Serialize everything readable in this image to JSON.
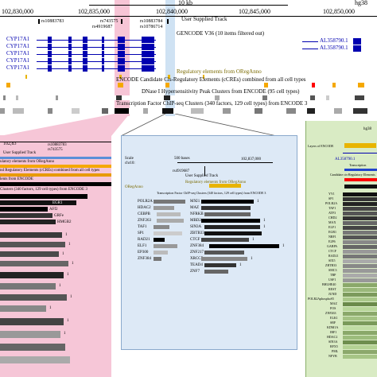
{
  "ruler": {
    "scale_label": "10 kb",
    "assembly": "hg38",
    "positions": [
      "102,830,000",
      "102,835,000",
      "102,840,000",
      "102,845,000",
      "102,850,000"
    ]
  },
  "tracks": {
    "user_supplied": "User Supplied Track",
    "snps": [
      "rs10883783",
      "rs743575",
      "rs4919687",
      "rs10883784",
      "rs10786714"
    ],
    "gencode": "GENCODE V36 (10 items filtered out)",
    "genes": [
      "CYP17A1",
      "CYP17A1",
      "CYP17A1",
      "CYP17A1",
      "CYP17A1"
    ],
    "right_genes": [
      "AL358790.1",
      "AL358790.1"
    ],
    "oreganno": "Regulatory elements from ORegAnno",
    "ccre": "ENCODE Candidate Cis-Regulatory Elements (cCREs) combined from all cell types",
    "dnase": "DNase I Hypersensitivity Peak Clusters from ENCODE (95 cell types)",
    "tfbs": "Transcription Factor ChIP-seq Clusters (340 factors, 129 cell types) from ENCODE 3"
  },
  "left_panel": {
    "ruler_pos": "102,83",
    "labels": [
      "User Supplied Track",
      "ulatory elements from ORegAnno",
      "nd Regulatory Elements (cCREs) combined from all cell types",
      "lents from ENCODE",
      "Clusters (340 factors, 129 cell types) from ENCODE 3",
      "EGR1",
      "AFf2",
      "GRFe",
      "HMGB2"
    ],
    "row_values": [
      "1",
      "1",
      "1",
      "1",
      "1",
      "1",
      "1",
      "1",
      "1",
      "1"
    ],
    "snp_labels": [
      "rs10883783",
      "rs743575"
    ]
  },
  "center_panel": {
    "labels": [
      "Scale",
      "chr10:",
      "User Supplied Track",
      "Regulatory elements from ORegAnno",
      "ORegAnno",
      "Transcription Factor ChIP-seq Clusters (340 factors, 129 cell types) from ENCODE 3"
    ],
    "scale_values": [
      "500 bases",
      "102,837,000",
      "rs4919687"
    ],
    "factors_left": [
      "POLR2A",
      "HDAC2",
      "CEBPB",
      "ZNF263",
      "TAF1",
      "SP1",
      "RAD21",
      "ELF1",
      "EP300",
      "ZNF384"
    ],
    "factors_right": [
      "MXI1",
      "MAZ",
      "NFRKB",
      "MBD2",
      "SIN3A",
      "ZBTB33",
      "CTCF",
      "ZNF384",
      "ZNF217",
      "XRCC5",
      "TEAD4",
      "ZNF7"
    ],
    "row_values": [
      "1",
      "1",
      "1",
      "1",
      "1",
      "1",
      "1",
      "1",
      "1"
    ]
  },
  "right_panel": {
    "labels": [
      "hg38",
      "Layers of ENCODE",
      "Transcription",
      "Candidate cis-Regulatory Elements",
      "AL358790.1"
    ],
    "factors": [
      "YY1",
      "SP1",
      "POLR2A",
      "TAF1",
      "ATF3",
      "CHD2",
      "MAX",
      "ELF1",
      "EGR1",
      "NRF1",
      "E2F6",
      "GABPA",
      "CTCF",
      "RAD21",
      "SIX5",
      "ZBTB33",
      "SMC3",
      "TBP",
      "USF1",
      "BHLHE40",
      "REST",
      "JUND",
      "POLR2AphosphoS5",
      "MAZ",
      "FOS",
      "ZNF263",
      "ELK1",
      "SRF",
      "KDM1A",
      "IRF1",
      "HDAC2",
      "SIN3A",
      "RFX5",
      "PML",
      "NFYB"
    ]
  },
  "colors": {
    "gene": "#0000b0",
    "pink_panel": "#f6c6d7",
    "pink_highlight": "#f7c5d6",
    "blue_panel": "#dde9f6",
    "blue_highlight": "#cfe2f3",
    "green_panel": "#d9ebc4",
    "oreganno": "#e8b400",
    "ccre_orange": "#f5a800",
    "ccre_red": "#ff0000"
  }
}
